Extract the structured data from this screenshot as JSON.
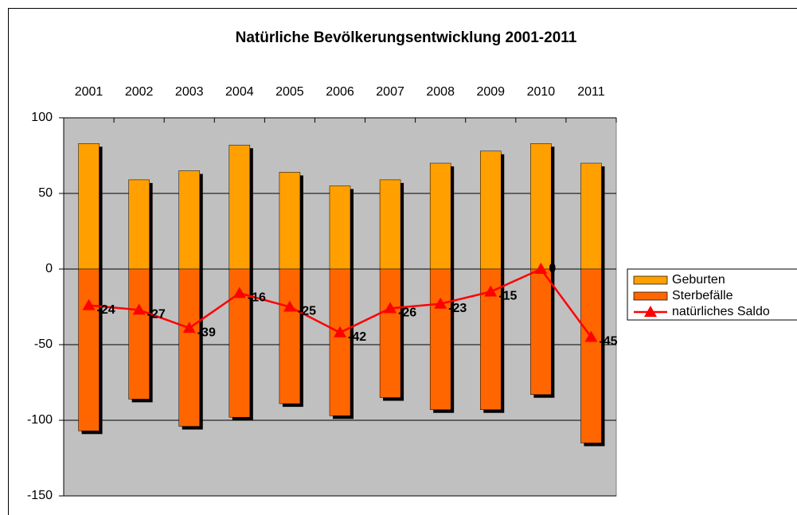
{
  "chart_data": {
    "type": "bar",
    "title": "Natürliche Bevölkerungsentwicklung 2001-2011",
    "categories": [
      "2001",
      "2002",
      "2003",
      "2004",
      "2005",
      "2006",
      "2007",
      "2008",
      "2009",
      "2010",
      "2011"
    ],
    "series": [
      {
        "name": "Geburten",
        "type": "bar",
        "color": "#ff9f00",
        "values": [
          83,
          59,
          65,
          82,
          64,
          55,
          59,
          70,
          78,
          83,
          70
        ]
      },
      {
        "name": "Sterbefälle",
        "type": "bar",
        "color": "#ff6600",
        "values": [
          -107,
          -86,
          -104,
          -98,
          -89,
          -97,
          -85,
          -93,
          -93,
          -83,
          -115
        ]
      },
      {
        "name": "natürliches Saldo",
        "type": "line",
        "color": "#ff0000",
        "values": [
          -24,
          -27,
          -39,
          -16,
          -25,
          -42,
          -26,
          -23,
          -15,
          0,
          -45
        ],
        "data_labels": true
      }
    ],
    "ylim": [
      -150,
      100
    ],
    "yticks": [
      100,
      50,
      0,
      -50,
      -100,
      -150
    ],
    "grid": true,
    "legend": "right",
    "plot_background": "#c0c0c0"
  }
}
